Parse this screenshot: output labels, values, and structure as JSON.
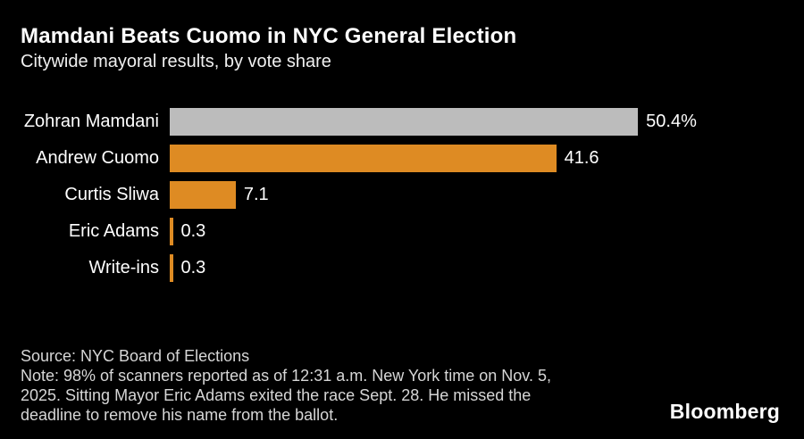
{
  "header": {
    "title": "Mamdani Beats Cuomo in NYC General Election",
    "subtitle": "Citywide mayoral results, by vote share"
  },
  "chart_data": {
    "type": "bar",
    "orientation": "horizontal",
    "title": "Mamdani Beats Cuomo in NYC General Election",
    "subtitle": "Citywide mayoral results, by vote share",
    "xlabel": "",
    "ylabel": "",
    "unit": "vote share %",
    "xlim": [
      0,
      50.4
    ],
    "grid": false,
    "legend": false,
    "categories": [
      "Zohran Mamdani",
      "Andrew Cuomo",
      "Curtis Sliwa",
      "Eric Adams",
      "Write-ins"
    ],
    "values": [
      50.4,
      41.6,
      7.1,
      0.3,
      0.3
    ],
    "value_labels": [
      "50.4%",
      "41.6",
      "7.1",
      "0.3",
      "0.3"
    ],
    "bar_colors": [
      "#bcbcbc",
      "#de8b23",
      "#de8b23",
      "#de8b23",
      "#de8b23"
    ]
  },
  "footer": {
    "source": "Source: NYC Board of Elections",
    "note": "Note: 98% of scanners reported as of 12:31 a.m. New York time on Nov. 5, 2025. Sitting Mayor Eric Adams exited the race Sept. 28. He missed the deadline to remove his name from the ballot.",
    "note_lines": [
      "Note: 98% of scanners reported as of 12:31 a.m. New York time on Nov. 5,",
      "2025. Sitting Mayor Eric Adams exited the race Sept. 28. He missed the",
      "deadline to remove his name from the ballot."
    ],
    "brand": "Bloomberg"
  },
  "colors": {
    "background": "#000000",
    "leader_bar": "#bcbcbc",
    "accent_orange": "#de8b23",
    "text_primary": "#ffffff",
    "text_secondary": "#d6d6d6"
  }
}
